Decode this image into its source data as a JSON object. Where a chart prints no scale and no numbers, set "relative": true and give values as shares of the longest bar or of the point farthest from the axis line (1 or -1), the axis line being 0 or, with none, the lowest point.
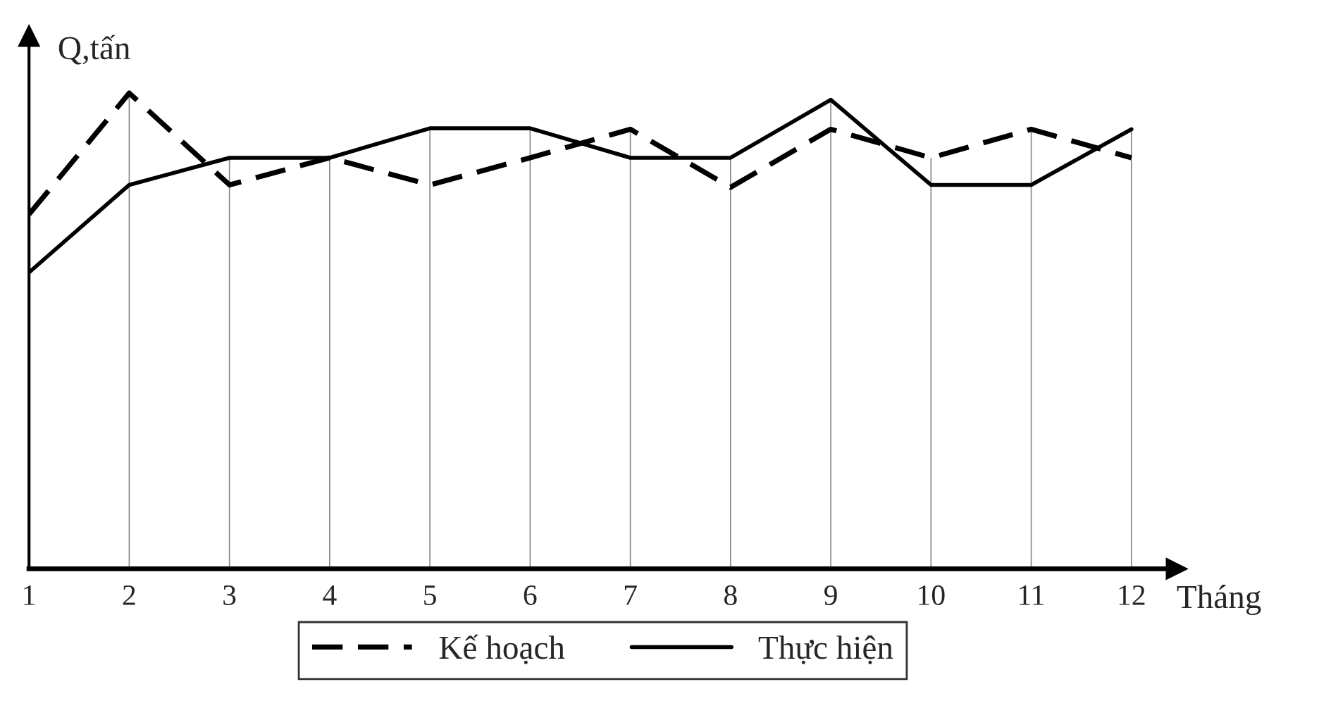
{
  "chart_data": {
    "type": "line",
    "relative": true,
    "xlabel": "Tháng",
    "ylabel": "Q,tấn",
    "categories": [
      "1",
      "2",
      "3",
      "4",
      "5",
      "6",
      "7",
      "8",
      "9",
      "10",
      "11",
      "12"
    ],
    "series": [
      {
        "name": "Kế hoạch",
        "color": "#000000",
        "line_style": "dashed",
        "values": [
          0.745,
          1,
          0.807,
          0.864,
          0.807,
          0.864,
          0.924,
          0.802,
          0.924,
          0.864,
          0.924,
          0.864
        ]
      },
      {
        "name": "Thực hiện",
        "color": "#000000",
        "line_style": "solid",
        "values": [
          0.623,
          0.807,
          0.864,
          0.864,
          0.926,
          0.926,
          0.864,
          0.864,
          0.986,
          0.807,
          0.807,
          0.924
        ]
      }
    ],
    "grid": "x",
    "legend": "bottom",
    "marker": "none"
  }
}
